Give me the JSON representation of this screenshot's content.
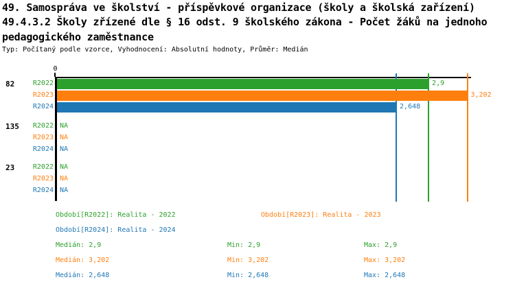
{
  "header": {
    "title_line1": "49. Samospráva ve školství - příspěvkové organizace (školy a školská zařízení)",
    "title_line2": "49.4.3.2 Školy zřízené dle § 16 odst. 9 školského zákona - Počet žáků na jednoho",
    "title_line3": "pedagogického zaměstnance",
    "subtitle": "Typ: Počítaný podle vzorce, Vyhodnocení: Absolutní hodnoty, Průměr: Medián"
  },
  "colors": {
    "r2022_green": "#2ca02c",
    "r2023_orange": "#ff7f0e",
    "r2024_blue": "#1f77b4",
    "axis_black": "#000000",
    "background": "#ffffff"
  },
  "chart_data": {
    "type": "bar",
    "orientation": "horizontal",
    "x_axis": {
      "zero_label": "0",
      "min": 0,
      "max": 3.202,
      "grid": false
    },
    "series_colors": {
      "R2022": "#2ca02c",
      "R2023": "#ff7f0e",
      "R2024": "#1f77b4"
    },
    "groups": [
      {
        "label": "82",
        "rows": [
          {
            "series": "R2022",
            "value": 2.9,
            "display": "2,9"
          },
          {
            "series": "R2023",
            "value": 3.202,
            "display": "3,202"
          },
          {
            "series": "R2024",
            "value": 2.648,
            "display": "2,648"
          }
        ]
      },
      {
        "label": "135",
        "rows": [
          {
            "series": "R2022",
            "value": null,
            "display": "NA"
          },
          {
            "series": "R2023",
            "value": null,
            "display": "NA"
          },
          {
            "series": "R2024",
            "value": null,
            "display": "NA"
          }
        ]
      },
      {
        "label": "23",
        "rows": [
          {
            "series": "R2022",
            "value": null,
            "display": "NA"
          },
          {
            "series": "R2023",
            "value": null,
            "display": "NA"
          },
          {
            "series": "R2024",
            "value": null,
            "display": "NA"
          }
        ]
      }
    ],
    "median_lines": [
      {
        "series": "R2022",
        "value": 2.9
      },
      {
        "series": "R2023",
        "value": 3.202
      },
      {
        "series": "R2024",
        "value": 2.648
      }
    ]
  },
  "legend": {
    "r2022": "Období[R2022]: Realita - 2022",
    "r2023": "Období[R2023]: Realita - 2023",
    "r2024": "Období[R2024]: Realita - 2024"
  },
  "stats": {
    "rows": [
      {
        "series": "R2022",
        "median": "Medián: 2,9",
        "min": "Min: 2,9",
        "max": "Max: 2,9"
      },
      {
        "series": "R2023",
        "median": "Medián: 3,202",
        "min": "Min: 3,202",
        "max": "Max: 3,202"
      },
      {
        "series": "R2024",
        "median": "Medián: 2,648",
        "min": "Min: 2,648",
        "max": "Max: 2,648"
      }
    ]
  }
}
